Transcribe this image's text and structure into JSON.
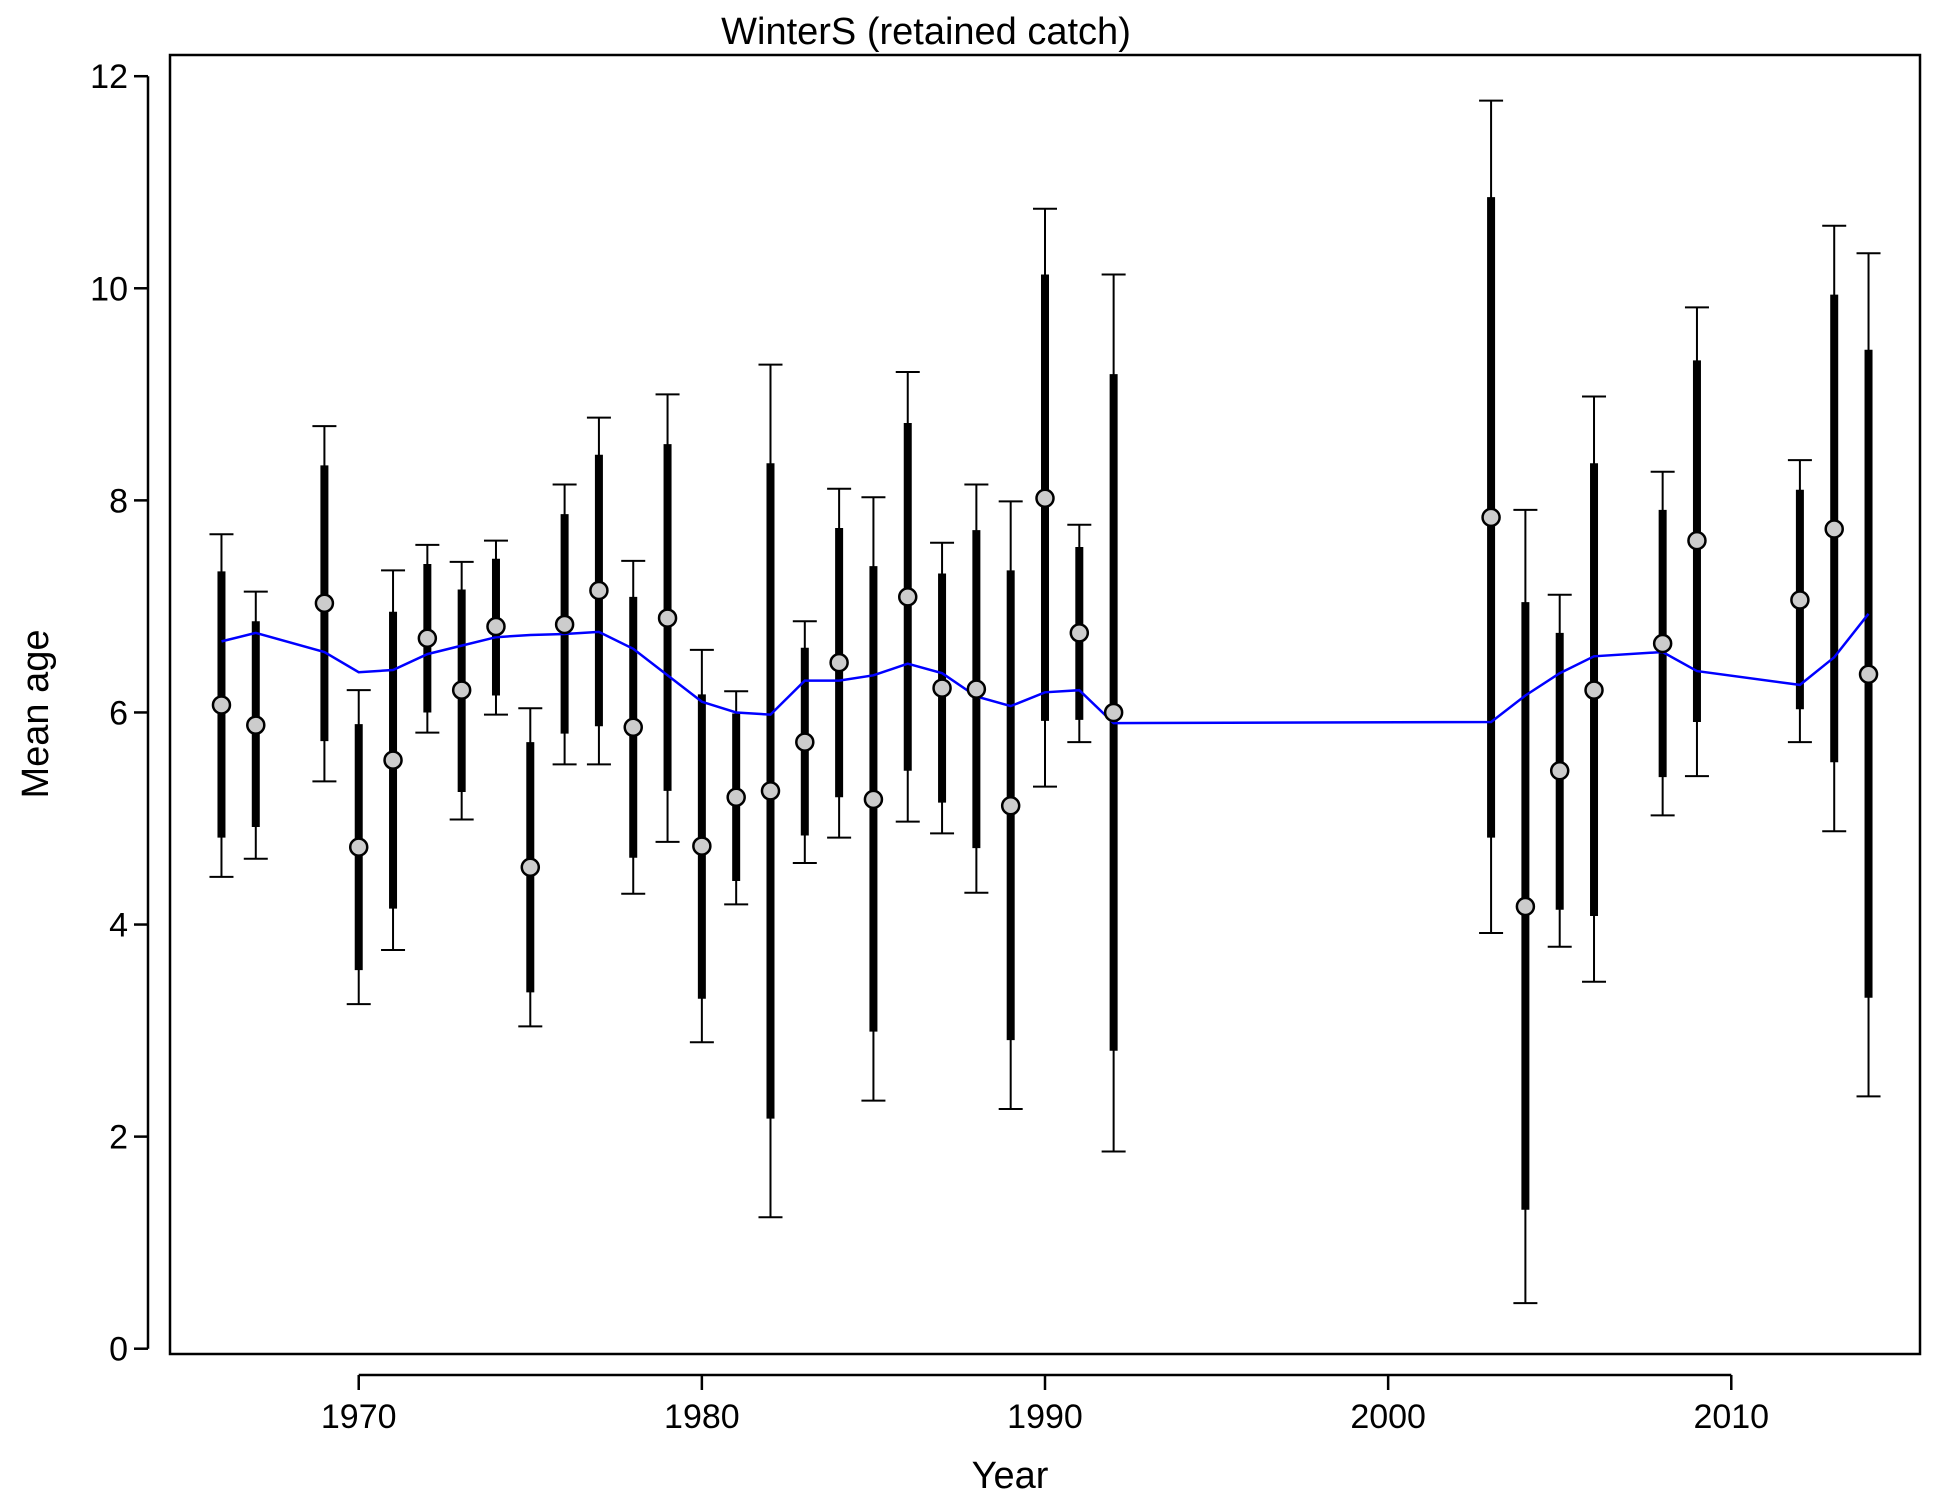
{
  "chart_data": {
    "type": "scatter",
    "title": "WinterS (retained catch)",
    "xlabel": "Year",
    "ylabel": "Mean age",
    "xlim": [
      1964.5,
      2015.5
    ],
    "ylim": [
      -0.05,
      12.2
    ],
    "x_ticks": [
      1970,
      1980,
      1990,
      2000,
      2010
    ],
    "y_ticks": [
      0,
      2,
      4,
      6,
      8,
      10,
      12
    ],
    "grid": false,
    "legend": "none",
    "colors": {
      "observed_fill": "#cccccc",
      "interval": "#000000",
      "expected_line": "#0000ff"
    },
    "series": [
      {
        "type": "errorbar-points",
        "points": [
          {
            "x": 1966,
            "y": 6.07,
            "inner": [
              4.82,
              7.33
            ],
            "outer": [
              4.45,
              7.68
            ]
          },
          {
            "x": 1967,
            "y": 5.88,
            "inner": [
              4.92,
              6.86
            ],
            "outer": [
              4.62,
              7.14
            ]
          },
          {
            "x": 1969,
            "y": 7.03,
            "inner": [
              5.73,
              8.33
            ],
            "outer": [
              5.35,
              8.7
            ]
          },
          {
            "x": 1970,
            "y": 4.73,
            "inner": [
              3.57,
              5.89
            ],
            "outer": [
              3.25,
              6.21
            ]
          },
          {
            "x": 1971,
            "y": 5.55,
            "inner": [
              4.15,
              6.95
            ],
            "outer": [
              3.76,
              7.34
            ]
          },
          {
            "x": 1972,
            "y": 6.7,
            "inner": [
              6.0,
              7.4
            ],
            "outer": [
              5.81,
              7.58
            ]
          },
          {
            "x": 1973,
            "y": 6.21,
            "inner": [
              5.25,
              7.16
            ],
            "outer": [
              4.99,
              7.42
            ]
          },
          {
            "x": 1974,
            "y": 6.81,
            "inner": [
              6.16,
              7.45
            ],
            "outer": [
              5.98,
              7.62
            ]
          },
          {
            "x": 1975,
            "y": 4.54,
            "inner": [
              3.36,
              5.72
            ],
            "outer": [
              3.04,
              6.04
            ]
          },
          {
            "x": 1976,
            "y": 6.83,
            "inner": [
              5.8,
              7.87
            ],
            "outer": [
              5.51,
              8.15
            ]
          },
          {
            "x": 1977,
            "y": 7.15,
            "inner": [
              5.87,
              8.43
            ],
            "outer": [
              5.51,
              8.78
            ]
          },
          {
            "x": 1978,
            "y": 5.86,
            "inner": [
              4.63,
              7.09
            ],
            "outer": [
              4.29,
              7.43
            ]
          },
          {
            "x": 1979,
            "y": 6.89,
            "inner": [
              5.26,
              8.53
            ],
            "outer": [
              4.78,
              9.0
            ]
          },
          {
            "x": 1980,
            "y": 4.74,
            "inner": [
              3.3,
              6.17
            ],
            "outer": [
              2.89,
              6.59
            ]
          },
          {
            "x": 1981,
            "y": 5.2,
            "inner": [
              4.41,
              5.99
            ],
            "outer": [
              4.19,
              6.2
            ]
          },
          {
            "x": 1982,
            "y": 5.26,
            "inner": [
              2.17,
              8.35
            ],
            "outer": [
              1.24,
              9.28
            ]
          },
          {
            "x": 1983,
            "y": 5.72,
            "inner": [
              4.84,
              6.61
            ],
            "outer": [
              4.58,
              6.86
            ]
          },
          {
            "x": 1984,
            "y": 6.47,
            "inner": [
              5.2,
              7.74
            ],
            "outer": [
              4.82,
              8.11
            ]
          },
          {
            "x": 1985,
            "y": 5.18,
            "inner": [
              2.99,
              7.38
            ],
            "outer": [
              2.34,
              8.03
            ]
          },
          {
            "x": 1986,
            "y": 7.09,
            "inner": [
              5.45,
              8.73
            ],
            "outer": [
              4.97,
              9.21
            ]
          },
          {
            "x": 1987,
            "y": 6.23,
            "inner": [
              5.15,
              7.31
            ],
            "outer": [
              4.86,
              7.6
            ]
          },
          {
            "x": 1988,
            "y": 6.22,
            "inner": [
              4.72,
              7.72
            ],
            "outer": [
              4.3,
              8.15
            ]
          },
          {
            "x": 1989,
            "y": 5.12,
            "inner": [
              2.91,
              7.34
            ],
            "outer": [
              2.26,
              7.99
            ]
          },
          {
            "x": 1990,
            "y": 8.02,
            "inner": [
              5.92,
              10.13
            ],
            "outer": [
              5.3,
              10.75
            ]
          },
          {
            "x": 1991,
            "y": 6.75,
            "inner": [
              5.93,
              7.56
            ],
            "outer": [
              5.72,
              7.77
            ]
          },
          {
            "x": 1992,
            "y": 6.0,
            "inner": [
              2.81,
              9.19
            ],
            "outer": [
              1.86,
              10.13
            ]
          },
          {
            "x": 2003,
            "y": 7.84,
            "inner": [
              4.82,
              10.86
            ],
            "outer": [
              3.92,
              11.77
            ]
          },
          {
            "x": 2004,
            "y": 4.17,
            "inner": [
              1.31,
              7.04
            ],
            "outer": [
              0.43,
              7.91
            ]
          },
          {
            "x": 2005,
            "y": 5.45,
            "inner": [
              4.14,
              6.75
            ],
            "outer": [
              3.79,
              7.11
            ]
          },
          {
            "x": 2006,
            "y": 6.21,
            "inner": [
              4.08,
              8.35
            ],
            "outer": [
              3.46,
              8.98
            ]
          },
          {
            "x": 2008,
            "y": 6.65,
            "inner": [
              5.39,
              7.91
            ],
            "outer": [
              5.03,
              8.27
            ]
          },
          {
            "x": 2009,
            "y": 7.62,
            "inner": [
              5.91,
              9.32
            ],
            "outer": [
              5.4,
              9.82
            ]
          },
          {
            "x": 2012,
            "y": 7.06,
            "inner": [
              6.03,
              8.1
            ],
            "outer": [
              5.72,
              8.38
            ]
          },
          {
            "x": 2013,
            "y": 7.73,
            "inner": [
              5.53,
              9.94
            ],
            "outer": [
              4.88,
              10.59
            ]
          },
          {
            "x": 2014,
            "y": 6.36,
            "inner": [
              3.31,
              9.42
            ],
            "outer": [
              2.38,
              10.33
            ]
          }
        ]
      },
      {
        "type": "line",
        "x": [
          1966,
          1967,
          1969,
          1970,
          1971,
          1972,
          1973,
          1974,
          1975,
          1976,
          1977,
          1978,
          1979,
          1980,
          1981,
          1982,
          1983,
          1984,
          1985,
          1986,
          1987,
          1988,
          1989,
          1990,
          1991,
          1992,
          2003,
          2004,
          2005,
          2006,
          2008,
          2009,
          2012,
          2013,
          2014
        ],
        "y": [
          6.67,
          6.75,
          6.57,
          6.38,
          6.4,
          6.55,
          6.63,
          6.71,
          6.73,
          6.74,
          6.76,
          6.6,
          6.35,
          6.1,
          6.0,
          5.98,
          6.3,
          6.3,
          6.35,
          6.46,
          6.37,
          6.15,
          6.06,
          6.19,
          6.21,
          5.9,
          5.91,
          6.16,
          6.37,
          6.53,
          6.57,
          6.39,
          6.26,
          6.52,
          6.93
        ]
      }
    ]
  }
}
